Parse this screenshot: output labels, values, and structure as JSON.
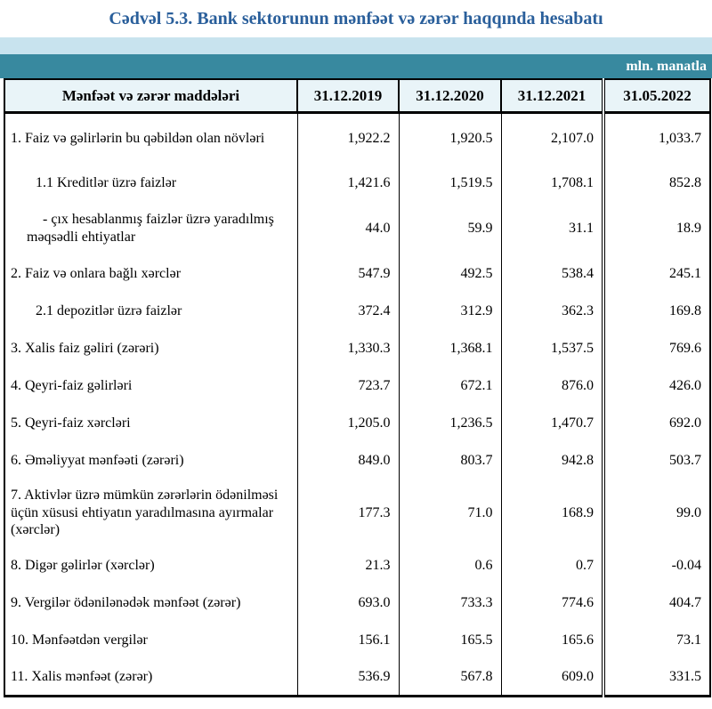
{
  "title": "Cədvəl 5.3. Bank sektorunun mənfəət və zərər haqqında hesabatı",
  "unit_label": "mln. manatla",
  "colors": {
    "title_blue": "#2a5f9b",
    "band_light_blue": "#c8e3ee",
    "band_teal": "#38899f",
    "header_bg": "#e9f4f8",
    "border": "#000000",
    "unit_text": "#ffffff"
  },
  "table": {
    "header": [
      "Mənfəət və zərər maddələri",
      "31.12.2019",
      "31.12.2020",
      "31.12.2021",
      "31.05.2022"
    ],
    "rows": [
      {
        "label": "1. Faiz və gəlirlərin bu qəbildən olan növləri",
        "values": [
          "1,922.2",
          "1,920.5",
          "2,107.0",
          "1,033.7"
        ]
      },
      {
        "label": "1.1 Kreditlər üzrə faizlər",
        "values": [
          "1,421.6",
          "1,519.5",
          "1,708.1",
          "852.8"
        ]
      },
      {
        "label": "-  çıx hesablanmış faizlər üzrə yaradılmış məqsədli ehtiyatlar",
        "values": [
          "44.0",
          "59.9",
          "31.1",
          "18.9"
        ]
      },
      {
        "label": "2. Faiz və onlara bağlı xərclər",
        "values": [
          "547.9",
          "492.5",
          "538.4",
          "245.1"
        ]
      },
      {
        "label": "2.1 depozitlər üzrə faizlər",
        "values": [
          "372.4",
          "312.9",
          "362.3",
          "169.8"
        ]
      },
      {
        "label": "3. Xalis faiz gəliri (zərəri)",
        "values": [
          "1,330.3",
          "1,368.1",
          "1,537.5",
          "769.6"
        ]
      },
      {
        "label": "4. Qeyri-faiz gəlirləri",
        "values": [
          "723.7",
          "672.1",
          "876.0",
          "426.0"
        ]
      },
      {
        "label": "5. Qeyri-faiz xərcləri",
        "values": [
          "1,205.0",
          "1,236.5",
          "1,470.7",
          "692.0"
        ]
      },
      {
        "label": "6. Əməliyyat mənfəəti (zərəri)",
        "values": [
          "849.0",
          "803.7",
          "942.8",
          "503.7"
        ]
      },
      {
        "label": "7. Aktivlər üzrə mümkün zərərlərin ödənilməsi üçün xüsusi ehtiyatın yaradılmasına ayırmalar (xərclər)",
        "values": [
          "177.3",
          "71.0",
          "168.9",
          "99.0"
        ]
      },
      {
        "label": "8. Digər gəlirlər (xərclər)",
        "values": [
          "21.3",
          "0.6",
          "0.7",
          "-0.04"
        ]
      },
      {
        "label": "9. Vergilər ödənilənədək mənfəət (zərər)",
        "values": [
          "693.0",
          "733.3",
          "774.6",
          "404.7"
        ]
      },
      {
        "label": "10. Mənfəətdən vergilər",
        "values": [
          "156.1",
          "165.5",
          "165.6",
          "73.1"
        ]
      },
      {
        "label": "11. Xalis mənfəət (zərər)",
        "values": [
          "536.9",
          "567.8",
          "609.0",
          "331.5"
        ]
      }
    ]
  }
}
